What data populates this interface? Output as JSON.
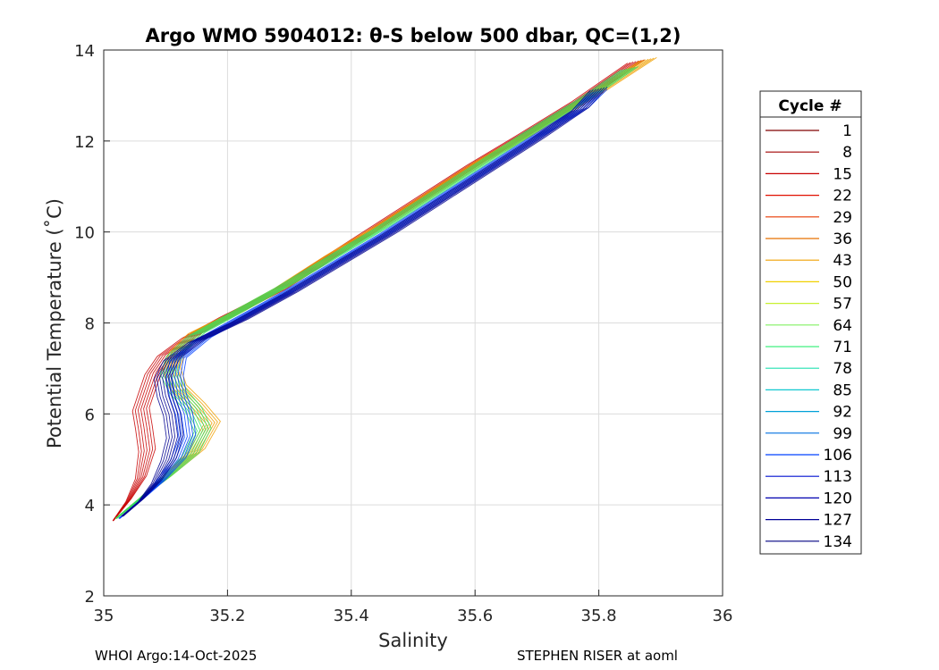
{
  "chart_data": {
    "type": "line",
    "title": "Argo WMO 5904012: θ-S below 500 dbar,  QC=(1,2)",
    "xlabel": "Salinity",
    "ylabel": "Potential Temperature (˚C)",
    "xlim": [
      35,
      36
    ],
    "ylim": [
      2,
      14
    ],
    "xticks": [
      "35",
      "35.2",
      "35.4",
      "35.6",
      "35.8",
      "36"
    ],
    "yticks": [
      "2",
      "4",
      "6",
      "8",
      "10",
      "12",
      "14"
    ],
    "grid": true,
    "legend": {
      "title": "Cycle #",
      "placement": "right-outside",
      "entries": [
        "1",
        "8",
        "15",
        "22",
        "29",
        "36",
        "43",
        "50",
        "57",
        "64",
        "71",
        "78",
        "85",
        "92",
        "99",
        "106",
        "113",
        "120",
        "127",
        "134"
      ]
    },
    "colormap": "jet",
    "series_groups": [
      {
        "cycles": "1-20",
        "color": "#c80000",
        "points": [
          [
            35.015,
            3.65
          ],
          [
            35.04,
            4.1
          ],
          [
            35.06,
            4.6
          ],
          [
            35.07,
            5.2
          ],
          [
            35.065,
            5.7
          ],
          [
            35.06,
            6.1
          ],
          [
            35.07,
            6.5
          ],
          [
            35.08,
            6.9
          ],
          [
            35.1,
            7.3
          ],
          [
            35.14,
            7.7
          ],
          [
            35.2,
            8.15
          ],
          [
            35.28,
            8.7
          ],
          [
            35.36,
            9.4
          ],
          [
            35.44,
            10.1
          ],
          [
            35.52,
            10.8
          ],
          [
            35.6,
            11.5
          ],
          [
            35.68,
            12.15
          ],
          [
            35.77,
            12.9
          ],
          [
            35.86,
            13.75
          ]
        ]
      },
      {
        "cycles": "36-50",
        "color": "#f0a000",
        "points": [
          [
            35.02,
            3.7
          ],
          [
            35.06,
            4.15
          ],
          [
            35.1,
            4.6
          ],
          [
            35.15,
            5.2
          ],
          [
            35.175,
            5.8
          ],
          [
            35.15,
            6.2
          ],
          [
            35.12,
            6.6
          ],
          [
            35.11,
            7.0
          ],
          [
            35.12,
            7.4
          ],
          [
            35.15,
            7.8
          ],
          [
            35.21,
            8.2
          ],
          [
            35.29,
            8.8
          ],
          [
            35.37,
            9.5
          ],
          [
            35.45,
            10.15
          ],
          [
            35.53,
            10.85
          ],
          [
            35.61,
            11.55
          ],
          [
            35.7,
            12.25
          ],
          [
            35.79,
            13.0
          ],
          [
            35.88,
            13.8
          ]
        ]
      },
      {
        "cycles": "57-85",
        "color": "#30e060",
        "points": [
          [
            35.02,
            3.7
          ],
          [
            35.06,
            4.15
          ],
          [
            35.1,
            4.6
          ],
          [
            35.14,
            5.1
          ],
          [
            35.16,
            5.65
          ],
          [
            35.145,
            6.1
          ],
          [
            35.12,
            6.5
          ],
          [
            35.105,
            6.9
          ],
          [
            35.115,
            7.3
          ],
          [
            35.15,
            7.75
          ],
          [
            35.21,
            8.2
          ],
          [
            35.29,
            8.8
          ],
          [
            35.37,
            9.45
          ],
          [
            35.45,
            10.1
          ],
          [
            35.53,
            10.8
          ],
          [
            35.61,
            11.5
          ],
          [
            35.69,
            12.2
          ],
          [
            35.78,
            12.95
          ],
          [
            35.85,
            13.6
          ]
        ]
      },
      {
        "cycles": "92-113",
        "color": "#0040ff",
        "points": [
          [
            35.025,
            3.7
          ],
          [
            35.06,
            4.1
          ],
          [
            35.09,
            4.5
          ],
          [
            35.12,
            5.0
          ],
          [
            35.135,
            5.5
          ],
          [
            35.13,
            6.0
          ],
          [
            35.12,
            6.4
          ],
          [
            35.115,
            6.8
          ],
          [
            35.12,
            7.2
          ],
          [
            35.16,
            7.65
          ],
          [
            35.22,
            8.1
          ],
          [
            35.3,
            8.7
          ],
          [
            35.38,
            9.35
          ],
          [
            35.46,
            10.0
          ],
          [
            35.54,
            10.7
          ],
          [
            35.62,
            11.4
          ],
          [
            35.7,
            12.1
          ],
          [
            35.77,
            12.7
          ],
          [
            35.8,
            13.1
          ]
        ]
      },
      {
        "cycles": "120-134",
        "color": "#000090",
        "points": [
          [
            35.03,
            3.75
          ],
          [
            35.06,
            4.1
          ],
          [
            35.085,
            4.5
          ],
          [
            35.105,
            5.0
          ],
          [
            35.115,
            5.5
          ],
          [
            35.11,
            6.0
          ],
          [
            35.1,
            6.4
          ],
          [
            35.095,
            6.8
          ],
          [
            35.11,
            7.2
          ],
          [
            35.15,
            7.6
          ],
          [
            35.22,
            8.05
          ],
          [
            35.3,
            8.65
          ],
          [
            35.38,
            9.3
          ],
          [
            35.46,
            9.95
          ],
          [
            35.54,
            10.65
          ],
          [
            35.62,
            11.35
          ],
          [
            35.7,
            12.05
          ],
          [
            35.77,
            12.7
          ],
          [
            35.8,
            13.15
          ]
        ]
      }
    ]
  },
  "footer": {
    "left": "WHOI Argo:14-Oct-2025",
    "right": "STEPHEN RISER at aoml"
  }
}
